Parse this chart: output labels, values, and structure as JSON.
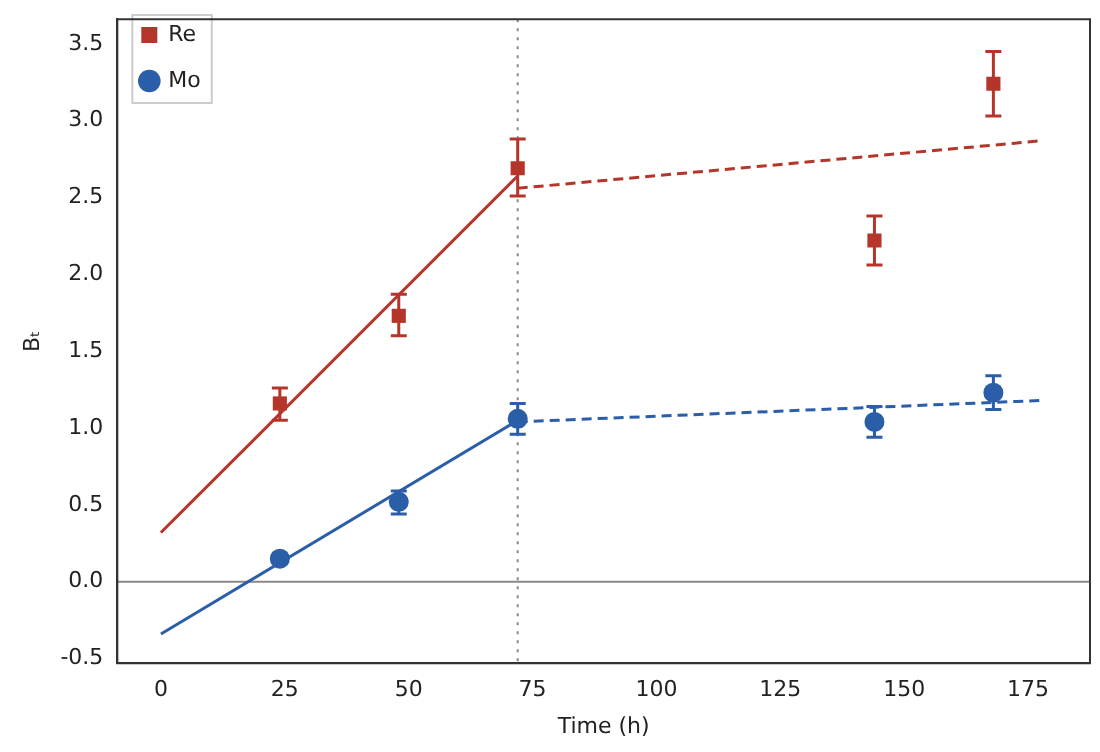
{
  "chart_data": {
    "type": "scatter",
    "xlabel": "Time (h)",
    "ylabel": "Bₜ",
    "xlim": [
      -8.8,
      187.5
    ],
    "ylim": [
      -0.53,
      3.66
    ],
    "xticks": [
      0,
      25,
      50,
      75,
      100,
      125,
      150,
      175
    ],
    "yticks": [
      -0.5,
      {
        "value": 0,
        "label": "0.0"
      },
      0.5,
      {
        "value": 1,
        "label": "1.0"
      },
      1.5,
      {
        "value": 2,
        "label": "2.0"
      },
      2.5,
      {
        "value": 3,
        "label": "3.0"
      },
      3.5
    ],
    "legend": "top left",
    "ref_lines": [
      {
        "axis": "y",
        "value": 0,
        "color": "#888888",
        "line_style": "solid"
      },
      {
        "axis": "x",
        "value": 72,
        "color": "#888888",
        "line_style": "dotted"
      }
    ],
    "series": [
      {
        "name": "Re",
        "color": "#b5352b",
        "marker": "square",
        "x": [
          24,
          48,
          72,
          144,
          168
        ],
        "values": [
          1.16,
          1.73,
          2.69,
          2.22,
          3.24
        ],
        "errors": [
          [
            1.05,
            1.26
          ],
          [
            1.6,
            1.87
          ],
          [
            2.51,
            2.88
          ],
          [
            2.06,
            2.38
          ],
          [
            3.03,
            3.45
          ]
        ]
      },
      {
        "name": "Mo",
        "color": "#2a5ea8",
        "marker": "circle",
        "x": [
          24,
          48,
          72,
          144,
          168
        ],
        "values": [
          0.15,
          0.52,
          1.06,
          1.04,
          1.23
        ],
        "errors": [
          [
            0.12,
            0.18
          ],
          [
            0.44,
            0.59
          ],
          [
            0.96,
            1.16
          ],
          [
            0.94,
            1.14
          ],
          [
            1.12,
            1.34
          ]
        ]
      },
      {
        "type": "line",
        "color": "#b5352b",
        "marker": "none",
        "line_style": "solid",
        "x": [
          0,
          72
        ],
        "values": [
          0.32,
          2.64
        ]
      },
      {
        "type": "line",
        "color": "#b5352b",
        "marker": "none",
        "line_style": "dashed",
        "x": [
          72,
          178
        ],
        "values": [
          2.56,
          2.87
        ]
      },
      {
        "type": "line",
        "color": "#2a5ea8",
        "marker": "none",
        "line_style": "solid",
        "x": [
          0,
          72
        ],
        "values": [
          -0.34,
          1.05
        ]
      },
      {
        "type": "line",
        "color": "#2a5ea8",
        "marker": "none",
        "line_style": "dashed",
        "x": [
          72,
          178
        ],
        "values": [
          1.04,
          1.18
        ]
      }
    ]
  }
}
